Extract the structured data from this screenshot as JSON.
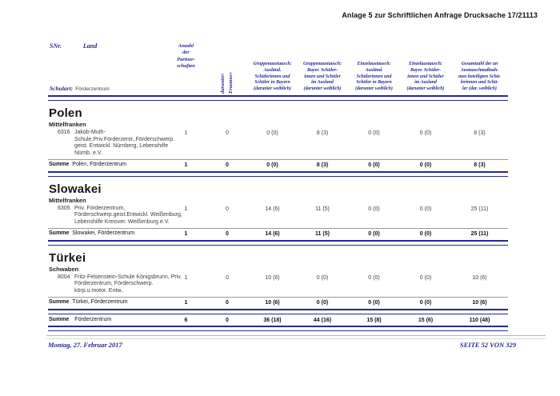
{
  "page": {
    "header_right": "Anlage 5 zur Schriftlichen Anfrage Drucksache 17/21113",
    "footer_left": "Montag, 27. Februar 2017",
    "footer_right": "SEITE 52 VON 329"
  },
  "colors": {
    "navy": "#28288e"
  },
  "table_head": {
    "snr": "SNr.",
    "land": "Land",
    "schulart_label": "Schulart:",
    "schulart_value": "Förderzentrum",
    "partnerschaften": "Anzahl\nder\nPartner-\nschaften",
    "erasmus": "darunter:\nErasmus+",
    "columns": [
      "Gruppenaustausch:\nAusländ.\nSchülerinnen und\nSchüler in Bayern\n(darunter weiblich)",
      "Gruppenaustausch:\nBayer. Schüler-\ninnen und Schüler\nim Ausland\n(darunter weiblich)",
      "Einzelaustausch:\nAusländ.\nSchülerinnen und\nSchüler in Bayern\n(darunter weiblich)",
      "Einzelaustausch:\nBayer. Schüler-\ninnen und Schüler\nim Ausland\n(darunter weiblich)",
      "Gesamtzahl der an\nAustauschmaßnah-\nmen beteiligten Schü-\nlerinnen und Schü-\nler (dar. weiblich)"
    ]
  },
  "sections": [
    {
      "country": "Polen",
      "region": "Mittelfranken",
      "school": {
        "snr": "6316",
        "name": "Jakob-Muth-\nSchule,Priv.Förderzentr.,Förderschwerp.\ngeist. Entwickl. Nürnberg, Lebenshilfe\nNürnb. e.V.",
        "values": [
          "1",
          "0",
          "0 (0)",
          "8 (3)",
          "0 (0)",
          "0 (0)",
          "8 (3)"
        ]
      },
      "summe_label": "Summe",
      "summe_name": "Polen, Förderzentrum",
      "summe_values": [
        "1",
        "0",
        "0 (0)",
        "8 (3)",
        "0 (0)",
        "0 (0)",
        "8 (3)"
      ]
    },
    {
      "country": "Slowakei",
      "region": "Mittelfranken",
      "school": {
        "snr": "6305",
        "name": "Priv. Förderzentrum,\nFörderschwerp.geist.Entwickl. Weißenburg,\nLebenshilfe Kreisver. Weißenburg e.V.",
        "values": [
          "1",
          "0",
          "14 (6)",
          "11 (5)",
          "0 (0)",
          "0 (0)",
          "25 (11)"
        ]
      },
      "summe_label": "Summe",
      "summe_name": "Slowakei, Förderzentrum",
      "summe_values": [
        "1",
        "0",
        "14 (6)",
        "11 (5)",
        "0 (0)",
        "0 (0)",
        "25 (11)"
      ]
    },
    {
      "country": "Türkei",
      "region": "Schwaben",
      "school": {
        "snr": "8004",
        "name": "Fritz-Felsenstein-Schule Königsbrunn, Priv.\nFörderzentrum, Förderschwerp.\nkörp.u.motor. Entw..",
        "values": [
          "1",
          "0",
          "10 (6)",
          "0 (0)",
          "0 (0)",
          "0 (0)",
          "10 (6)"
        ]
      },
      "summe_label": "Summe",
      "summe_name": "Türkei, Förderzentrum",
      "summe_values": [
        "1",
        "0",
        "10 (6)",
        "0 (0)",
        "0 (0)",
        "0 (0)",
        "10 (6)"
      ]
    }
  ],
  "grand_total": {
    "label": "Summe",
    "name": "Förderzentrum",
    "values": [
      "6",
      "0",
      "36 (18)",
      "44 (16)",
      "15 (8)",
      "15 (6)",
      "110 (48)"
    ]
  }
}
